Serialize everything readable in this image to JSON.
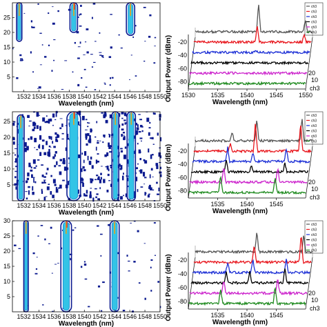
{
  "chart_data": [
    {
      "id": "contour-top",
      "type": "heatmap",
      "xlabel": "Wavelength (nm)",
      "ylabel": "",
      "xlim": [
        1530.5,
        1550
      ],
      "ylim": [
        0,
        30
      ],
      "x_ticks": [
        "1532",
        "1534",
        "1536",
        "1538",
        "1540",
        "1542",
        "1544",
        "1546",
        "1548",
        "1550"
      ],
      "y_ticks": [
        "5",
        "10",
        "15",
        "20",
        "25"
      ],
      "bands": [
        {
          "x": 1531.4,
          "y0": 17,
          "y1": 30,
          "w": 0.35
        },
        {
          "x": 1538.6,
          "y0": 20,
          "y1": 30,
          "w": 0.5
        },
        {
          "x": 1546.1,
          "y0": 19,
          "y1": 30,
          "w": 0.55
        }
      ],
      "noise": 0.06
    },
    {
      "id": "contour-middle",
      "type": "heatmap",
      "xlabel": "Wavelength (nm)",
      "ylabel": "",
      "xlim": [
        1530.5,
        1550
      ],
      "ylim": [
        0,
        28
      ],
      "x_ticks": [
        "1532",
        "1534",
        "1536",
        "1538",
        "1540",
        "1542",
        "1544",
        "1546",
        "1548",
        "1550"
      ],
      "y_ticks": [
        "5",
        "10",
        "15",
        "20",
        "25"
      ],
      "bands": [
        {
          "x": 1531.6,
          "y0": 0,
          "y1": 27,
          "w": 0.45
        },
        {
          "x": 1538.6,
          "y0": 0,
          "y1": 28,
          "w": 0.9
        },
        {
          "x": 1544.1,
          "y0": 0,
          "y1": 28,
          "w": 0.45
        },
        {
          "x": 1546.2,
          "y0": 0,
          "y1": 28,
          "w": 0.55
        }
      ],
      "noise": 0.32
    },
    {
      "id": "contour-bottom",
      "type": "heatmap",
      "xlabel": "Wavelength (nm)",
      "ylabel": "",
      "xlim": [
        1530.5,
        1550
      ],
      "ylim": [
        0,
        30
      ],
      "x_ticks": [
        "1532",
        "1534",
        "1536",
        "1538",
        "1540",
        "1542",
        "1544",
        "1546",
        "1548",
        "1550"
      ],
      "y_ticks": [
        "5",
        "10",
        "15",
        "20",
        "25",
        "30"
      ],
      "bands": [
        {
          "x": 1532.3,
          "y0": 0,
          "y1": 30,
          "w": 0.3
        },
        {
          "x": 1537.6,
          "y0": 0,
          "y1": 30,
          "w": 0.7
        },
        {
          "x": 1544.0,
          "y0": 0,
          "y1": 30,
          "w": 0.6
        }
      ],
      "noise": 0.05
    },
    {
      "id": "waterfall-top",
      "type": "line",
      "xlabel": "Wavelength (nm)",
      "ylabel": "Output Power (dBm)",
      "xlim": [
        1530,
        1550
      ],
      "x_ticks": [
        "1530",
        "1535",
        "1540",
        "1545",
        "1550"
      ],
      "y_ticks": [
        "-20",
        "-40",
        "-60",
        "-80"
      ],
      "legend": [
        "ch3",
        "ch3",
        "ch3",
        "ch3",
        "ch3",
        "ch3"
      ],
      "depth_ticks": [
        "20",
        "10"
      ],
      "depth_label": "ch3",
      "series": [
        {
          "color": "#555555",
          "peaks": [
            [
              1540.8,
              1.0
            ],
            [
              1548.8,
              0.45
            ]
          ]
        },
        {
          "color": "#e8141b",
          "peaks": [
            [
              1540.8,
              0.55
            ],
            [
              1548.8,
              0.3
            ]
          ]
        },
        {
          "color": "#1c2fd6",
          "peaks": [
            [
              1540.8,
              0.08
            ]
          ]
        },
        {
          "color": "#000000",
          "peaks": []
        },
        {
          "color": "#cc22cc",
          "peaks": []
        },
        {
          "color": "#1e8a1e",
          "peaks": []
        }
      ]
    },
    {
      "id": "waterfall-middle",
      "type": "line",
      "xlabel": "Wavelength (nm)",
      "ylabel": "Output Power (dBm)",
      "xlim": [
        1530,
        1550
      ],
      "x_ticks": [
        "1535",
        "1540",
        "1545"
      ],
      "y_ticks": [
        "-20",
        "-40",
        "-60",
        "-80"
      ],
      "legend": [
        "ch3",
        "ch3",
        "ch3",
        "ch3",
        "ch3",
        "ch3"
      ],
      "depth_ticks": [
        "20",
        "10"
      ],
      "depth_label": "ch3",
      "series": [
        {
          "color": "#555555",
          "peaks": [
            [
              1536.3,
              0.3
            ],
            [
              1540.5,
              0.75
            ],
            [
              1548.2,
              0.8
            ]
          ]
        },
        {
          "color": "#e8141b",
          "peaks": [
            [
              1536.2,
              0.25
            ],
            [
              1540.5,
              1.0
            ],
            [
              1548.2,
              1.0
            ]
          ]
        },
        {
          "color": "#1c2fd6",
          "peaks": [
            [
              1536.0,
              0.5
            ],
            [
              1540.3,
              0.3
            ],
            [
              1546.0,
              0.45
            ]
          ]
        },
        {
          "color": "#000000",
          "peaks": [
            [
              1536.0,
              0.4
            ],
            [
              1540.3,
              0.2
            ],
            [
              1546.0,
              0.3
            ]
          ]
        },
        {
          "color": "#cc22cc",
          "peaks": [
            [
              1535.8,
              0.55
            ],
            [
              1545.0,
              0.5
            ]
          ]
        },
        {
          "color": "#1e8a1e",
          "peaks": [
            [
              1535.5,
              0.6
            ],
            [
              1544.8,
              0.55
            ]
          ]
        }
      ]
    },
    {
      "id": "waterfall-bottom",
      "type": "line",
      "xlabel": "Wavelength (nm)",
      "ylabel": "Output Power (dBm)",
      "xlim": [
        1530,
        1550
      ],
      "x_ticks": [
        "1535",
        "1540",
        "1545"
      ],
      "y_ticks": [
        "-20",
        "-40",
        "-60",
        "-80"
      ],
      "legend": [
        "ch3",
        "ch3",
        "ch3",
        "ch3",
        "ch3",
        "ch3"
      ],
      "depth_ticks": [
        "20",
        "10"
      ],
      "depth_label": "ch3",
      "series": [
        {
          "color": "#555555",
          "peaks": [
            [
              1540.5,
              0.7
            ],
            [
              1548.5,
              0.6
            ]
          ]
        },
        {
          "color": "#e8141b",
          "peaks": [
            [
              1540.3,
              0.6
            ],
            [
              1548.3,
              1.0
            ]
          ]
        },
        {
          "color": "#1c2fd6",
          "peaks": [
            [
              1536.0,
              0.35
            ],
            [
              1540.3,
              0.5
            ],
            [
              1546.0,
              0.45
            ]
          ]
        },
        {
          "color": "#000000",
          "peaks": [
            [
              1536.0,
              0.35
            ],
            [
              1540.0,
              0.4
            ],
            [
              1546.0,
              0.5
            ]
          ]
        },
        {
          "color": "#cc22cc",
          "peaks": [
            [
              1535.8,
              0.45
            ],
            [
              1545.0,
              0.5
            ]
          ]
        },
        {
          "color": "#1e8a1e",
          "peaks": [
            [
              1535.5,
              0.55
            ],
            [
              1544.8,
              0.6
            ]
          ]
        }
      ]
    }
  ]
}
